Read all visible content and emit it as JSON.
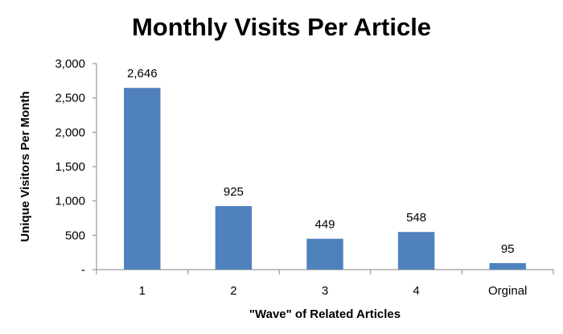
{
  "chart_data": {
    "type": "bar",
    "title": "Monthly Visits Per Article",
    "xlabel": "\"Wave\" of Related Articles",
    "ylabel": "Unique Visitors Per Month",
    "categories": [
      "1",
      "2",
      "3",
      "4",
      "Orginal"
    ],
    "values": [
      2646,
      925,
      449,
      548,
      95
    ],
    "data_labels": [
      "2,646",
      "925",
      "449",
      "548",
      "95"
    ],
    "ylim": [
      0,
      3000
    ],
    "yticks": [
      0,
      500,
      1000,
      1500,
      2000,
      2500,
      3000
    ],
    "ytick_labels": [
      "-",
      "500",
      "1,000",
      "1,500",
      "2,000",
      "2,500",
      "3,000"
    ],
    "grid": false,
    "legend": "none",
    "bar_color": "#4F81BD"
  }
}
